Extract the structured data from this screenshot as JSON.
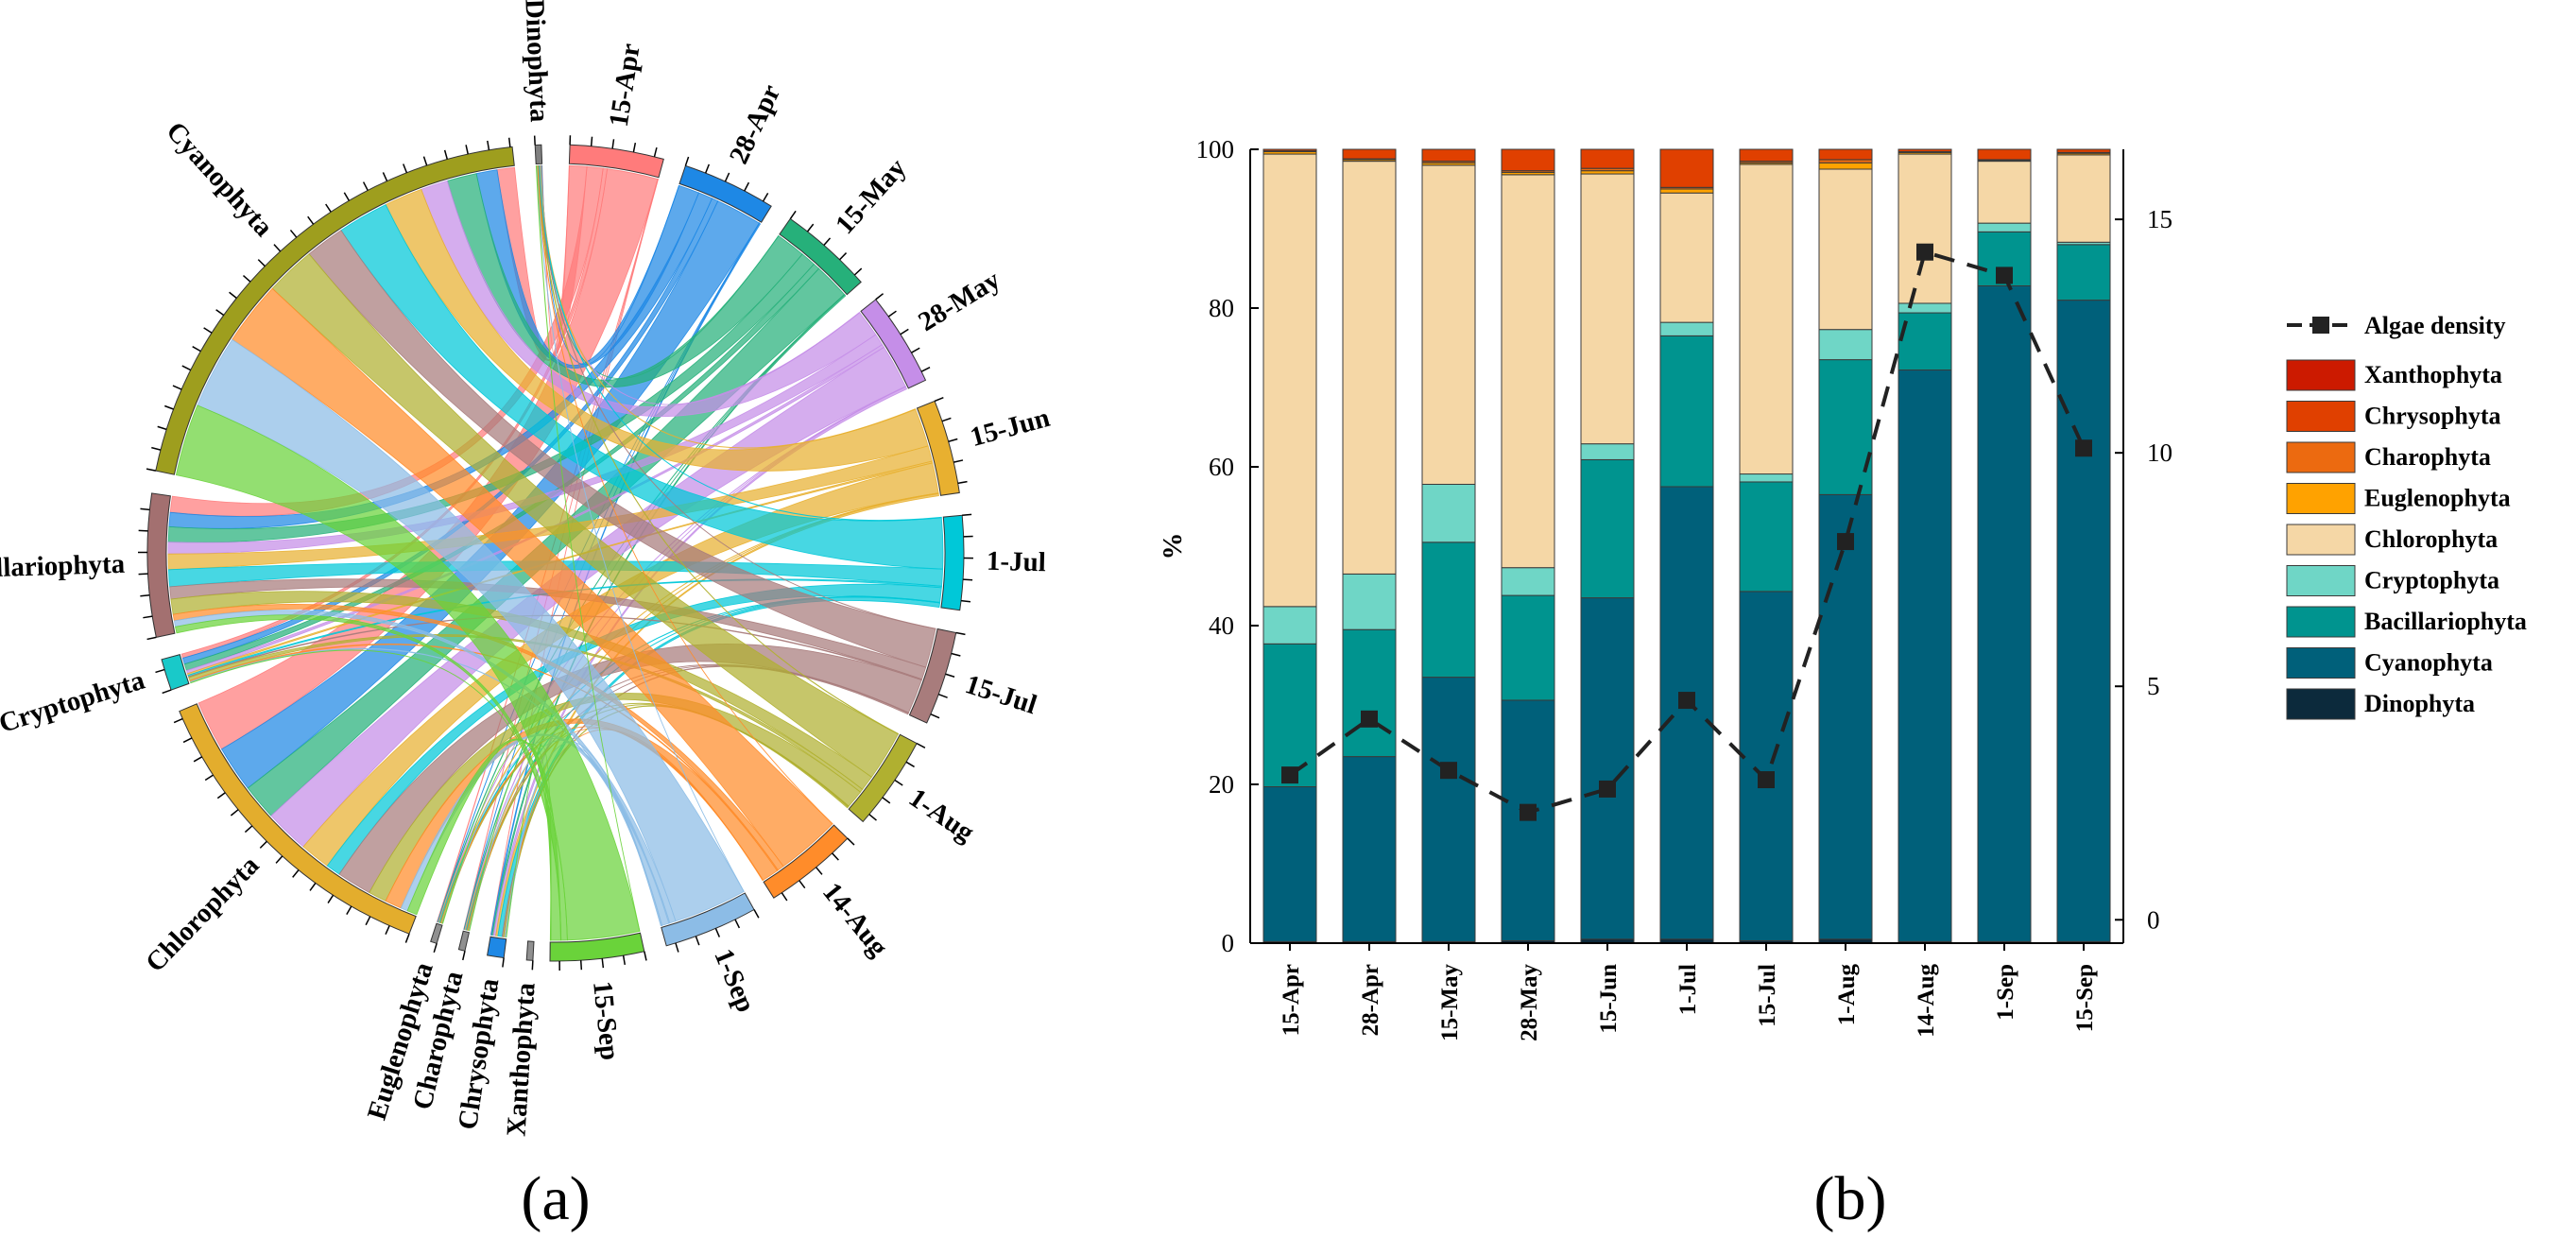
{
  "panel_labels": {
    "a": "(a)",
    "b": "(b)"
  },
  "chart_data": [
    {
      "type": "chord",
      "title": "",
      "dates": [
        "15-Apr",
        "28-Apr",
        "15-May",
        "28-May",
        "15-Jun",
        "1-Jul",
        "15-Jul",
        "1-Aug",
        "14-Aug",
        "1-Sep",
        "15-Sep"
      ],
      "date_colors": [
        "#ff7b7b",
        "#1e88e5",
        "#26b07a",
        "#c58ee8",
        "#e8b030",
        "#00c8d8",
        "#a87c7c",
        "#b0b030",
        "#ff8c2a",
        "#8cbce6",
        "#6ad33a"
      ],
      "phyla": [
        "Dinophyta",
        "Cyanophyta",
        "Bacillariophyta",
        "Cryptophyta",
        "Chlorophyta",
        "Euglenophyta",
        "Charophyta",
        "Chrysophyta",
        "Xanthophyta"
      ],
      "phylum_colors": [
        "#808080",
        "#9e9e1e",
        "#a37070",
        "#19c9c9",
        "#e3ad2d",
        "#909090",
        "#909090",
        "#1e88e5",
        "#909090"
      ],
      "matrix_note": "rows = dates, columns = phyla (relative abundance, %)",
      "matrix": [
        [
          0.2,
          19.5,
          18.0,
          4.7,
          57.0,
          0.3,
          0.1,
          0.2,
          0.0
        ],
        [
          0.2,
          23.3,
          16.0,
          7.0,
          52.0,
          0.2,
          0.1,
          1.2,
          0.0
        ],
        [
          0.2,
          33.3,
          17.0,
          7.3,
          40.2,
          0.3,
          0.2,
          1.5,
          0.0
        ],
        [
          0.3,
          30.3,
          13.2,
          3.5,
          49.5,
          0.3,
          0.2,
          2.7,
          0.0
        ],
        [
          0.5,
          43.0,
          17.4,
          2.0,
          34.0,
          0.4,
          0.3,
          2.4,
          0.0
        ],
        [
          0.5,
          57.0,
          19.0,
          1.7,
          16.3,
          0.5,
          0.2,
          4.8,
          0.0
        ],
        [
          0.3,
          44.0,
          13.8,
          1.0,
          39.0,
          0.2,
          0.2,
          1.5,
          0.0
        ],
        [
          0.5,
          56.0,
          17.0,
          3.8,
          20.2,
          0.8,
          0.4,
          1.3,
          0.0
        ],
        [
          0.2,
          72.0,
          7.2,
          1.2,
          18.8,
          0.2,
          0.1,
          0.3,
          0.0
        ],
        [
          0.2,
          82.6,
          6.8,
          1.1,
          7.8,
          0.1,
          0.1,
          1.3,
          0.0
        ],
        [
          0.2,
          80.8,
          7.0,
          0.3,
          11.0,
          0.2,
          0.1,
          0.4,
          0.0
        ]
      ]
    },
    {
      "type": "bar",
      "stacked": true,
      "categories": [
        "15-Apr",
        "28-Apr",
        "15-May",
        "28-May",
        "15-Jun",
        "1-Jul",
        "15-Jul",
        "1-Aug",
        "14-Aug",
        "1-Sep",
        "15-Sep"
      ],
      "ylabel": "%",
      "ylim": [
        0,
        100
      ],
      "yticks": [
        0,
        20,
        40,
        60,
        80,
        100
      ],
      "y2lim": [
        -0.5,
        16.5
      ],
      "y2ticks": [
        0,
        5,
        10,
        15
      ],
      "series": [
        {
          "name": "Dinophyta",
          "color": "#0c2a3c",
          "values": [
            0.2,
            0.2,
            0.2,
            0.3,
            0.5,
            0.5,
            0.3,
            0.5,
            0.2,
            0.2,
            0.2
          ]
        },
        {
          "name": "Cyanophyta",
          "color": "#00607a",
          "values": [
            19.5,
            23.3,
            33.3,
            30.3,
            43.0,
            57.0,
            44.0,
            56.0,
            72.0,
            82.6,
            80.8
          ]
        },
        {
          "name": "Bacillariophyta",
          "color": "#00948f",
          "values": [
            18.0,
            16.0,
            17.0,
            13.2,
            17.4,
            19.0,
            13.8,
            17.0,
            7.2,
            6.8,
            7.0
          ]
        },
        {
          "name": "Cryptophyta",
          "color": "#6fd6c6",
          "values": [
            4.7,
            7.0,
            7.3,
            3.5,
            2.0,
            1.7,
            1.0,
            3.8,
            1.2,
            1.1,
            0.3
          ]
        },
        {
          "name": "Chlorophyta",
          "color": "#f5d7a6",
          "values": [
            57.0,
            52.0,
            40.2,
            49.5,
            34.0,
            16.3,
            39.0,
            20.2,
            18.8,
            7.8,
            11.0
          ]
        },
        {
          "name": "Euglenophyta",
          "color": "#ffa200",
          "values": [
            0.3,
            0.2,
            0.3,
            0.3,
            0.4,
            0.5,
            0.2,
            0.8,
            0.2,
            0.1,
            0.2
          ]
        },
        {
          "name": "Charophyta",
          "color": "#ec6a10",
          "values": [
            0.1,
            0.1,
            0.2,
            0.2,
            0.3,
            0.2,
            0.2,
            0.4,
            0.1,
            0.1,
            0.1
          ]
        },
        {
          "name": "Chrysophyta",
          "color": "#e04000",
          "values": [
            0.2,
            1.2,
            1.5,
            2.7,
            2.4,
            4.8,
            1.5,
            1.3,
            0.3,
            1.3,
            0.4
          ]
        },
        {
          "name": "Xanthophyta",
          "color": "#cc1a00",
          "values": [
            0.0,
            0.0,
            0.0,
            0.0,
            0.0,
            0.0,
            0.0,
            0.0,
            0.0,
            0.0,
            0.0
          ]
        }
      ],
      "line_series": {
        "name": "Algae density",
        "axis": "right",
        "color": "#222222",
        "values": [
          3.1,
          4.3,
          3.2,
          2.3,
          2.8,
          4.7,
          3.0,
          8.1,
          14.3,
          13.8,
          10.1
        ]
      },
      "legend": [
        "Algae density",
        "Xanthophyta",
        "Chrysophyta",
        "Charophyta",
        "Euglenophyta",
        "Chlorophyta",
        "Cryptophyta",
        "Bacillariophyta",
        "Cyanophyta",
        "Dinophyta"
      ],
      "legend_position": "right"
    }
  ]
}
